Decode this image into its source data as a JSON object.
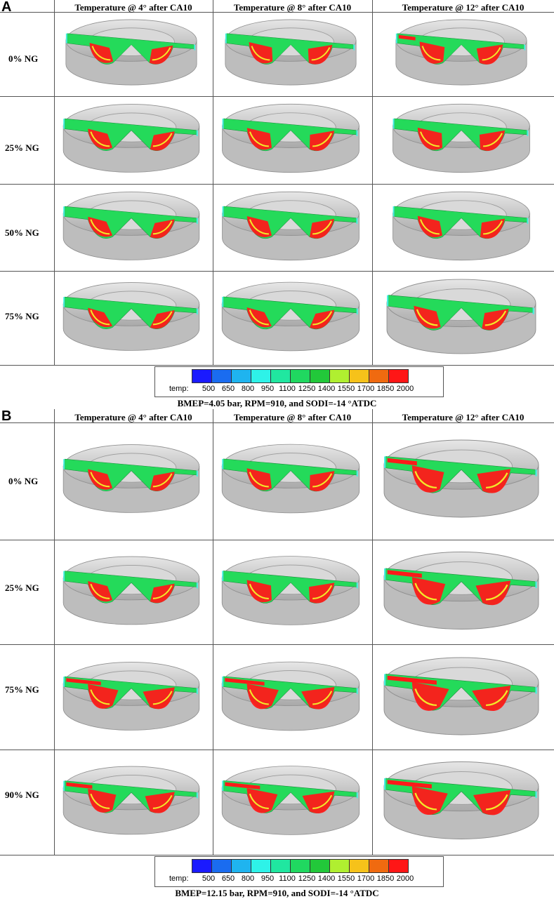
{
  "panels": [
    {
      "letter": "A",
      "column_headers": [
        "Temperature @ 4° after CA10",
        "Temperature @ 8° after CA10",
        "Temperature @ 12° after CA10"
      ],
      "row_labels": [
        "0% NG",
        "25% NG",
        "50% NG",
        "75% NG"
      ],
      "legend": {
        "label": "temp:",
        "ticks": [
          "500",
          "650",
          "800",
          "950",
          "1100",
          "1250",
          "1400",
          "1550",
          "1700",
          "1850",
          "2000"
        ]
      },
      "caption": "BMEP=4.05 bar, RPM=910, and SODI=-14 °ATDC"
    },
    {
      "letter": "B",
      "column_headers": [
        "Temperature @ 4° after CA10",
        "Temperature @ 8° after CA10",
        "Temperature @ 12° after CA10"
      ],
      "row_labels": [
        "0% NG",
        "25% NG",
        "75% NG",
        "90% NG"
      ],
      "legend": {
        "label": "temp:",
        "ticks": [
          "500",
          "650",
          "800",
          "950",
          "1100",
          "1250",
          "1400",
          "1550",
          "1700",
          "1850",
          "2000"
        ]
      },
      "caption": "BMEP=12.15 bar, RPM=910, and SODI=-14 °ATDC"
    }
  ],
  "colors": {
    "legend_bins": [
      "#1a1aff",
      "#1a6cf0",
      "#1fb4ef",
      "#2ef2e8",
      "#20e7a0",
      "#20d860",
      "#22c83a",
      "#b0ef30",
      "#f6c21a",
      "#f06a10",
      "#ff1616"
    ],
    "bowl_gray": "#c7c7c7",
    "slice_cyan": "#47f2e0",
    "slice_green": "#24da5a",
    "hot_red": "#ff1a1a",
    "warm_yellow": "#f2e82a"
  },
  "hot_fraction": {
    "A": [
      [
        0.35,
        0.5,
        0.6
      ],
      [
        0.3,
        0.45,
        0.5
      ],
      [
        0.25,
        0.35,
        0.4
      ],
      [
        0.15,
        0.2,
        0.35
      ]
    ],
    "B": [
      [
        0.3,
        0.45,
        0.7
      ],
      [
        0.3,
        0.5,
        0.75
      ],
      [
        0.8,
        0.85,
        0.9
      ],
      [
        0.7,
        0.8,
        0.85
      ]
    ]
  }
}
